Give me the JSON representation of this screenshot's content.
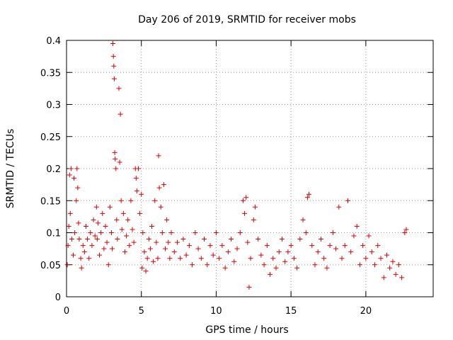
{
  "chart_data": {
    "type": "scatter",
    "title": "Day 206 of 2019, SRMTID for receiver mobs",
    "xlabel": "GPS time / hours",
    "ylabel": "SRMTID / TECUs",
    "xlim": [
      0,
      24.5
    ],
    "ylim": [
      0,
      0.4
    ],
    "x_ticks": [
      0,
      5,
      10,
      15,
      20
    ],
    "x_tick_labels": [
      "0",
      "5",
      "10",
      "15",
      "20"
    ],
    "y_ticks": [
      0,
      0.05,
      0.1,
      0.15,
      0.2,
      0.25,
      0.3,
      0.35,
      0.4
    ],
    "y_tick_labels": [
      "0",
      "0.05",
      "0.1",
      "0.15",
      "0.2",
      "0.25",
      "0.3",
      "0.35",
      "0.4"
    ],
    "grid": true,
    "marker": "plus",
    "series": [
      {
        "name": "SRMTID",
        "color": "#dd0000",
        "points": [
          [
            0.05,
            0.05
          ],
          [
            0.1,
            0.08
          ],
          [
            0.15,
            0.11
          ],
          [
            0.2,
            0.19
          ],
          [
            0.25,
            0.13
          ],
          [
            0.3,
            0.2
          ],
          [
            0.35,
            0.09
          ],
          [
            0.45,
            0.065
          ],
          [
            0.5,
            0.185
          ],
          [
            0.55,
            0.1
          ],
          [
            0.65,
            0.15
          ],
          [
            0.7,
            0.2
          ],
          [
            0.75,
            0.17
          ],
          [
            0.8,
            0.115
          ],
          [
            0.85,
            0.09
          ],
          [
            0.95,
            0.06
          ],
          [
            1.0,
            0.045
          ],
          [
            1.1,
            0.08
          ],
          [
            1.2,
            0.07
          ],
          [
            1.3,
            0.11
          ],
          [
            1.4,
            0.09
          ],
          [
            1.5,
            0.06
          ],
          [
            1.6,
            0.1
          ],
          [
            1.7,
            0.08
          ],
          [
            1.8,
            0.12
          ],
          [
            1.9,
            0.095
          ],
          [
            2.0,
            0.14
          ],
          [
            2.05,
            0.09
          ],
          [
            2.1,
            0.115
          ],
          [
            2.2,
            0.065
          ],
          [
            2.3,
            0.1
          ],
          [
            2.4,
            0.13
          ],
          [
            2.5,
            0.075
          ],
          [
            2.6,
            0.11
          ],
          [
            2.7,
            0.085
          ],
          [
            2.8,
            0.05
          ],
          [
            2.9,
            0.14
          ],
          [
            3.0,
            0.1
          ],
          [
            3.05,
            0.075
          ],
          [
            3.1,
            0.395
          ],
          [
            3.13,
            0.375
          ],
          [
            3.16,
            0.36
          ],
          [
            3.19,
            0.34
          ],
          [
            3.22,
            0.225
          ],
          [
            3.25,
            0.215
          ],
          [
            3.3,
            0.2
          ],
          [
            3.35,
            0.12
          ],
          [
            3.4,
            0.09
          ],
          [
            3.5,
            0.325
          ],
          [
            3.55,
            0.21
          ],
          [
            3.6,
            0.285
          ],
          [
            3.65,
            0.15
          ],
          [
            3.7,
            0.105
          ],
          [
            3.8,
            0.13
          ],
          [
            3.9,
            0.07
          ],
          [
            4.0,
            0.095
          ],
          [
            4.1,
            0.12
          ],
          [
            4.2,
            0.08
          ],
          [
            4.3,
            0.15
          ],
          [
            4.4,
            0.105
          ],
          [
            4.5,
            0.085
          ],
          [
            4.6,
            0.2
          ],
          [
            4.65,
            0.185
          ],
          [
            4.7,
            0.165
          ],
          [
            4.8,
            0.2
          ],
          [
            4.9,
            0.13
          ],
          [
            5.0,
            0.16
          ],
          [
            5.05,
            0.045
          ],
          [
            5.1,
            0.1
          ],
          [
            5.2,
            0.07
          ],
          [
            5.3,
            0.04
          ],
          [
            5.4,
            0.06
          ],
          [
            5.5,
            0.09
          ],
          [
            5.6,
            0.075
          ],
          [
            5.7,
            0.11
          ],
          [
            5.8,
            0.055
          ],
          [
            5.9,
            0.15
          ],
          [
            6.0,
            0.085
          ],
          [
            6.1,
            0.06
          ],
          [
            6.15,
            0.22
          ],
          [
            6.2,
            0.17
          ],
          [
            6.3,
            0.14
          ],
          [
            6.4,
            0.1
          ],
          [
            6.5,
            0.175
          ],
          [
            6.6,
            0.075
          ],
          [
            6.7,
            0.12
          ],
          [
            6.8,
            0.085
          ],
          [
            6.9,
            0.06
          ],
          [
            7.0,
            0.1
          ],
          [
            7.2,
            0.07
          ],
          [
            7.4,
            0.085
          ],
          [
            7.6,
            0.06
          ],
          [
            7.8,
            0.09
          ],
          [
            8.0,
            0.065
          ],
          [
            8.2,
            0.08
          ],
          [
            8.4,
            0.05
          ],
          [
            8.6,
            0.1
          ],
          [
            8.8,
            0.075
          ],
          [
            9.0,
            0.06
          ],
          [
            9.2,
            0.09
          ],
          [
            9.4,
            0.05
          ],
          [
            9.6,
            0.08
          ],
          [
            9.8,
            0.065
          ],
          [
            10.0,
            0.1
          ],
          [
            10.2,
            0.06
          ],
          [
            10.4,
            0.08
          ],
          [
            10.6,
            0.045
          ],
          [
            10.8,
            0.07
          ],
          [
            11.0,
            0.09
          ],
          [
            11.2,
            0.055
          ],
          [
            11.4,
            0.075
          ],
          [
            11.6,
            0.1
          ],
          [
            11.8,
            0.15
          ],
          [
            11.9,
            0.13
          ],
          [
            12.0,
            0.155
          ],
          [
            12.1,
            0.085
          ],
          [
            12.2,
            0.015
          ],
          [
            12.3,
            0.06
          ],
          [
            12.5,
            0.12
          ],
          [
            12.6,
            0.14
          ],
          [
            12.8,
            0.09
          ],
          [
            13.0,
            0.065
          ],
          [
            13.2,
            0.05
          ],
          [
            13.4,
            0.08
          ],
          [
            13.6,
            0.035
          ],
          [
            13.8,
            0.06
          ],
          [
            14.0,
            0.045
          ],
          [
            14.2,
            0.07
          ],
          [
            14.4,
            0.09
          ],
          [
            14.6,
            0.055
          ],
          [
            14.8,
            0.07
          ],
          [
            15.0,
            0.08
          ],
          [
            15.2,
            0.06
          ],
          [
            15.4,
            0.045
          ],
          [
            15.6,
            0.09
          ],
          [
            15.8,
            0.12
          ],
          [
            16.0,
            0.1
          ],
          [
            16.1,
            0.155
          ],
          [
            16.2,
            0.16
          ],
          [
            16.4,
            0.08
          ],
          [
            16.6,
            0.05
          ],
          [
            16.8,
            0.07
          ],
          [
            17.0,
            0.09
          ],
          [
            17.2,
            0.06
          ],
          [
            17.4,
            0.045
          ],
          [
            17.6,
            0.08
          ],
          [
            17.8,
            0.1
          ],
          [
            18.0,
            0.075
          ],
          [
            18.2,
            0.14
          ],
          [
            18.4,
            0.06
          ],
          [
            18.6,
            0.08
          ],
          [
            18.8,
            0.15
          ],
          [
            19.0,
            0.07
          ],
          [
            19.2,
            0.095
          ],
          [
            19.4,
            0.11
          ],
          [
            19.6,
            0.05
          ],
          [
            19.8,
            0.08
          ],
          [
            20.0,
            0.06
          ],
          [
            20.2,
            0.095
          ],
          [
            20.4,
            0.07
          ],
          [
            20.6,
            0.05
          ],
          [
            20.8,
            0.08
          ],
          [
            21.0,
            0.06
          ],
          [
            21.2,
            0.03
          ],
          [
            21.4,
            0.065
          ],
          [
            21.6,
            0.045
          ],
          [
            21.8,
            0.055
          ],
          [
            22.0,
            0.035
          ],
          [
            22.2,
            0.05
          ],
          [
            22.4,
            0.03
          ],
          [
            22.6,
            0.1
          ],
          [
            22.7,
            0.105
          ]
        ]
      }
    ]
  }
}
